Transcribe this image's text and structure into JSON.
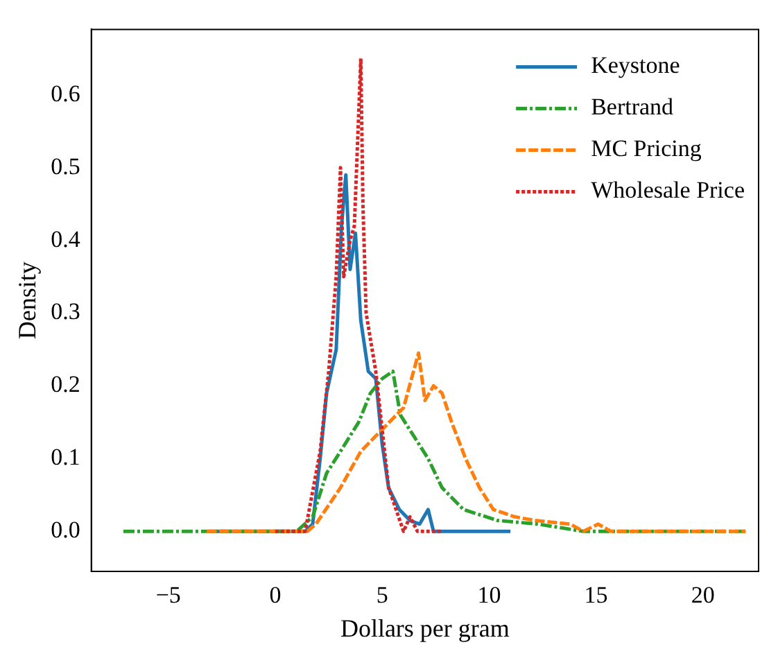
{
  "chart_data": {
    "type": "line",
    "xlabel": "Dollars per gram",
    "ylabel": "Density",
    "xlim": [
      -8.6,
      22.6
    ],
    "ylim": [
      -0.055,
      0.69
    ],
    "xticks": [
      {
        "value": -5,
        "label": "−5"
      },
      0,
      5,
      10,
      15,
      20
    ],
    "yticks": [
      {
        "value": 0,
        "label": "0.0"
      },
      0.1,
      0.2,
      0.3,
      0.4,
      0.5,
      0.6
    ],
    "grid": false,
    "legend": "top right",
    "marker": "none",
    "series": [
      {
        "name": "Keystone",
        "color": "#1f77b4",
        "line_style": "solid",
        "x": [
          -3.0,
          1.4,
          1.75,
          2.1,
          2.4,
          2.85,
          3.1,
          3.3,
          3.5,
          3.75,
          4.0,
          4.35,
          4.7,
          5.0,
          5.3,
          5.8,
          6.3,
          6.75,
          7.15,
          7.4,
          11.0
        ],
        "values": [
          0,
          0,
          0.01,
          0.1,
          0.19,
          0.25,
          0.42,
          0.49,
          0.36,
          0.41,
          0.29,
          0.22,
          0.21,
          0.12,
          0.06,
          0.03,
          0.015,
          0.01,
          0.03,
          0,
          0
        ]
      },
      {
        "name": "Bertrand",
        "color": "#2ca02c",
        "line_style": "dashdot",
        "x": [
          -7.1,
          1.0,
          1.75,
          2.4,
          3.05,
          3.9,
          4.45,
          5.0,
          5.5,
          5.85,
          6.5,
          7.15,
          7.8,
          8.8,
          10.4,
          12.3,
          14.4,
          22.0
        ],
        "values": [
          0,
          0,
          0.02,
          0.08,
          0.11,
          0.15,
          0.19,
          0.21,
          0.22,
          0.16,
          0.13,
          0.1,
          0.06,
          0.03,
          0.015,
          0.01,
          0,
          0
        ]
      },
      {
        "name": "MC Pricing",
        "color": "#ff7f0e",
        "line_style": "dashed",
        "x": [
          -3.2,
          1.5,
          1.9,
          3.05,
          4.0,
          5.0,
          6.0,
          6.7,
          7.0,
          7.4,
          7.8,
          8.25,
          8.9,
          9.55,
          10.2,
          11.2,
          12.15,
          13.8,
          14.4,
          15.1,
          15.7,
          22.0
        ],
        "values": [
          0,
          0,
          0.01,
          0.06,
          0.11,
          0.14,
          0.17,
          0.245,
          0.18,
          0.2,
          0.19,
          0.15,
          0.1,
          0.06,
          0.03,
          0.02,
          0.015,
          0.01,
          0,
          0.01,
          0,
          0
        ]
      },
      {
        "name": "Wholesale Price",
        "color": "#d62728",
        "line_style": "dotted",
        "x": [
          0.0,
          1.4,
          2.1,
          2.5,
          2.85,
          3.05,
          3.2,
          3.5,
          3.7,
          4.0,
          4.1,
          4.25,
          4.7,
          5.0,
          5.3,
          5.65,
          6.0,
          6.3,
          6.65,
          7.8
        ],
        "values": [
          0,
          0,
          0.11,
          0.22,
          0.35,
          0.5,
          0.35,
          0.4,
          0.42,
          0.65,
          0.45,
          0.3,
          0.22,
          0.14,
          0.06,
          0.03,
          0,
          0.02,
          0,
          0
        ]
      }
    ]
  }
}
